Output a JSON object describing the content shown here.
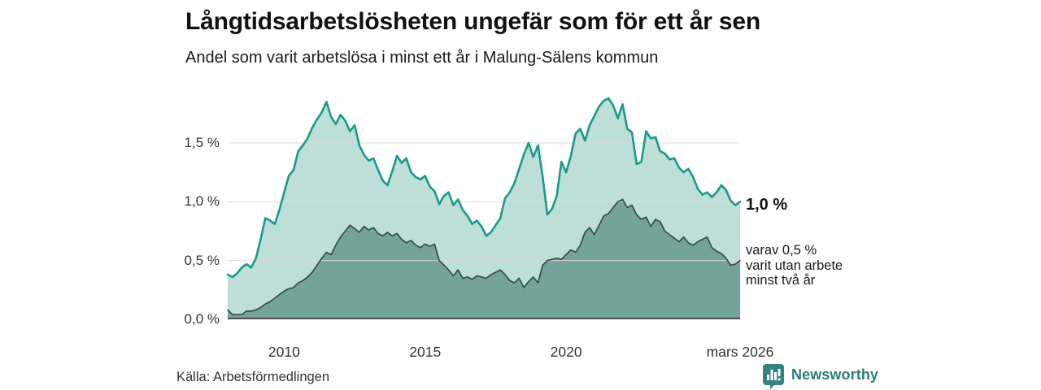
{
  "header": {
    "title": "Långtidsarbetslösheten ungefär som för ett år sen",
    "subtitle": "Andel som varit arbetslösa i minst ett år i Malung-Sälens kommun"
  },
  "chart_data": {
    "type": "area",
    "title": "Långtidsarbetslösheten ungefär som för ett år sen",
    "subtitle": "Andel som varit arbetslösa i minst ett år i Malung-Sälens kommun",
    "x_unit": "decimal_year",
    "x_domain": [
      2008.0,
      2026.167
    ],
    "ylim": [
      0,
      1.935
    ],
    "grid": true,
    "gridline_color": "#d9d9d9",
    "axis_line_color": "#4d4d4d",
    "y_ticks": [
      {
        "value": 1.5,
        "label": "1,5 %"
      },
      {
        "value": 1.0,
        "label": "1,0 %"
      },
      {
        "value": 0.5,
        "label": "0,5 %"
      },
      {
        "value": 0.0,
        "label": "0,0 %"
      }
    ],
    "x_ticks": [
      {
        "year": 2010,
        "label": "2010"
      },
      {
        "year": 2015,
        "label": "2015"
      },
      {
        "year": 2020,
        "label": "2020"
      },
      {
        "year": 2026.167,
        "label": "mars 2026"
      }
    ],
    "x": [
      2008.0,
      2008.167,
      2008.333,
      2008.5,
      2008.667,
      2008.833,
      2009.0,
      2009.167,
      2009.333,
      2009.5,
      2009.667,
      2009.833,
      2010.0,
      2010.167,
      2010.333,
      2010.5,
      2010.667,
      2010.833,
      2011.0,
      2011.167,
      2011.333,
      2011.5,
      2011.667,
      2011.833,
      2012.0,
      2012.167,
      2012.333,
      2012.5,
      2012.667,
      2012.833,
      2013.0,
      2013.167,
      2013.333,
      2013.5,
      2013.667,
      2013.833,
      2014.0,
      2014.167,
      2014.333,
      2014.5,
      2014.667,
      2014.833,
      2015.0,
      2015.167,
      2015.333,
      2015.5,
      2015.667,
      2015.833,
      2016.0,
      2016.167,
      2016.333,
      2016.5,
      2016.667,
      2016.833,
      2017.0,
      2017.167,
      2017.333,
      2017.5,
      2017.667,
      2017.833,
      2018.0,
      2018.167,
      2018.333,
      2018.5,
      2018.667,
      2018.833,
      2019.0,
      2019.167,
      2019.333,
      2019.5,
      2019.667,
      2019.833,
      2020.0,
      2020.167,
      2020.333,
      2020.5,
      2020.667,
      2020.833,
      2021.0,
      2021.167,
      2021.333,
      2021.5,
      2021.667,
      2021.833,
      2022.0,
      2022.167,
      2022.333,
      2022.5,
      2022.667,
      2022.833,
      2023.0,
      2023.167,
      2023.333,
      2023.5,
      2023.667,
      2023.833,
      2024.0,
      2024.167,
      2024.333,
      2024.5,
      2024.667,
      2024.833,
      2025.0,
      2025.167,
      2025.333,
      2025.5,
      2025.667,
      2025.833,
      2026.0,
      2026.167
    ],
    "series": [
      {
        "name": "Andel arbetslösa minst ett år",
        "line_color": "#1b998b",
        "fill_color": "#bddfd8",
        "line_width": 2.6,
        "values": [
          0.38,
          0.36,
          0.39,
          0.44,
          0.47,
          0.44,
          0.52,
          0.68,
          0.86,
          0.84,
          0.81,
          0.93,
          1.08,
          1.22,
          1.27,
          1.43,
          1.48,
          1.54,
          1.63,
          1.7,
          1.76,
          1.85,
          1.72,
          1.66,
          1.74,
          1.69,
          1.6,
          1.65,
          1.48,
          1.4,
          1.35,
          1.37,
          1.27,
          1.18,
          1.14,
          1.26,
          1.39,
          1.33,
          1.37,
          1.25,
          1.21,
          1.19,
          1.22,
          1.13,
          1.09,
          0.98,
          1.05,
          1.08,
          0.97,
          1.02,
          0.93,
          0.88,
          0.81,
          0.84,
          0.79,
          0.71,
          0.74,
          0.8,
          0.86,
          1.03,
          1.08,
          1.16,
          1.28,
          1.4,
          1.5,
          1.38,
          1.48,
          1.21,
          0.89,
          0.94,
          1.05,
          1.34,
          1.25,
          1.39,
          1.58,
          1.62,
          1.52,
          1.65,
          1.73,
          1.81,
          1.86,
          1.88,
          1.82,
          1.71,
          1.83,
          1.62,
          1.59,
          1.32,
          1.34,
          1.6,
          1.54,
          1.55,
          1.43,
          1.41,
          1.36,
          1.37,
          1.29,
          1.25,
          1.28,
          1.21,
          1.11,
          1.06,
          1.08,
          1.04,
          1.08,
          1.14,
          1.1,
          1.01,
          0.97,
          1.0
        ]
      },
      {
        "name": "varav utan arbete minst två år",
        "line_color": "#3a4b48",
        "fill_color": "#74a39c",
        "line_width": 1.7,
        "values": [
          0.08,
          0.04,
          0.04,
          0.04,
          0.07,
          0.07,
          0.08,
          0.1,
          0.13,
          0.15,
          0.18,
          0.21,
          0.24,
          0.26,
          0.27,
          0.31,
          0.33,
          0.36,
          0.4,
          0.46,
          0.52,
          0.57,
          0.55,
          0.63,
          0.7,
          0.75,
          0.8,
          0.77,
          0.74,
          0.79,
          0.76,
          0.78,
          0.73,
          0.71,
          0.74,
          0.71,
          0.73,
          0.68,
          0.65,
          0.67,
          0.63,
          0.61,
          0.64,
          0.62,
          0.64,
          0.5,
          0.46,
          0.42,
          0.37,
          0.42,
          0.35,
          0.36,
          0.34,
          0.37,
          0.36,
          0.35,
          0.38,
          0.4,
          0.42,
          0.38,
          0.33,
          0.31,
          0.35,
          0.27,
          0.32,
          0.36,
          0.31,
          0.46,
          0.5,
          0.51,
          0.52,
          0.51,
          0.55,
          0.59,
          0.57,
          0.63,
          0.74,
          0.78,
          0.72,
          0.8,
          0.88,
          0.9,
          0.95,
          1.0,
          1.02,
          0.95,
          0.97,
          0.89,
          0.85,
          0.87,
          0.79,
          0.85,
          0.83,
          0.75,
          0.72,
          0.69,
          0.66,
          0.7,
          0.65,
          0.63,
          0.66,
          0.68,
          0.7,
          0.61,
          0.58,
          0.56,
          0.52,
          0.46,
          0.47,
          0.5
        ]
      }
    ],
    "annotations": {
      "end_value_label": "1,0 %",
      "sub_label_lines": [
        "varav 0,5 %",
        "varit utan arbete",
        "minst två år"
      ]
    }
  },
  "footer": {
    "source": "Källa: Arbetsförmedlingen",
    "brand": "Newsworthy",
    "brand_color": "#2b7f79",
    "brand_badge_color": "#35837d",
    "brand_icon": "bar-chart-badge-icon"
  }
}
